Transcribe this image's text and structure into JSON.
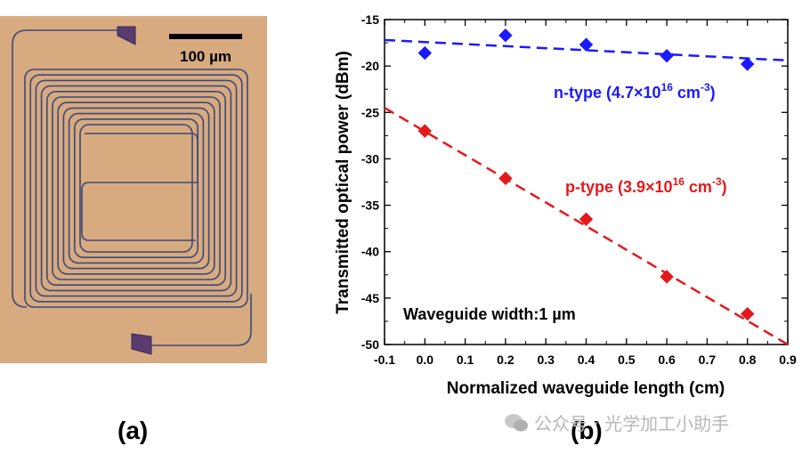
{
  "panels": {
    "a": "(a)",
    "b": "(b)"
  },
  "micrograph": {
    "scale_bar_label": "100 µm"
  },
  "watermark": {
    "text": "公众号 · 光学加工小助手"
  },
  "colors": {
    "n_type": "#1a1aff",
    "p_type": "#e31a1c",
    "substrate": "#d7a97f"
  },
  "chart_data": {
    "type": "scatter",
    "xlabel": "Normalized waveguide length (cm)",
    "ylabel": "Transmitted optical power (dBm)",
    "xlim": [
      -0.1,
      0.9
    ],
    "ylim": [
      -50,
      -15
    ],
    "xticks": [
      -0.1,
      0.0,
      0.1,
      0.2,
      0.3,
      0.4,
      0.5,
      0.6,
      0.7,
      0.8,
      0.9
    ],
    "yticks": [
      -15,
      -20,
      -25,
      -30,
      -35,
      -40,
      -45,
      -50
    ],
    "annotation": "Waveguide width:1 µm",
    "series": [
      {
        "name": "n-type",
        "label_main": "n-type (4.7×10",
        "label_exp": "16",
        "label_unit": " cm",
        "label_unit_exp": "-3",
        "label_close": ")",
        "color": "#1a1aff",
        "x": [
          0.0,
          0.2,
          0.4,
          0.6,
          0.8
        ],
        "y": [
          -18.6,
          -16.7,
          -17.7,
          -18.9,
          -19.8
        ],
        "fit": {
          "x": [
            -0.1,
            0.9
          ],
          "y": [
            -17.2,
            -19.4
          ]
        }
      },
      {
        "name": "p-type",
        "label_main": "p-type (3.9×10",
        "label_exp": "16",
        "label_unit": " cm",
        "label_unit_exp": "-3",
        "label_close": ")",
        "color": "#e31a1c",
        "x": [
          0.0,
          0.2,
          0.4,
          0.6,
          0.8
        ],
        "y": [
          -27.0,
          -32.1,
          -36.5,
          -42.7,
          -46.7
        ],
        "fit": {
          "x": [
            -0.1,
            0.9
          ],
          "y": [
            -24.5,
            -50.0
          ]
        }
      }
    ]
  }
}
